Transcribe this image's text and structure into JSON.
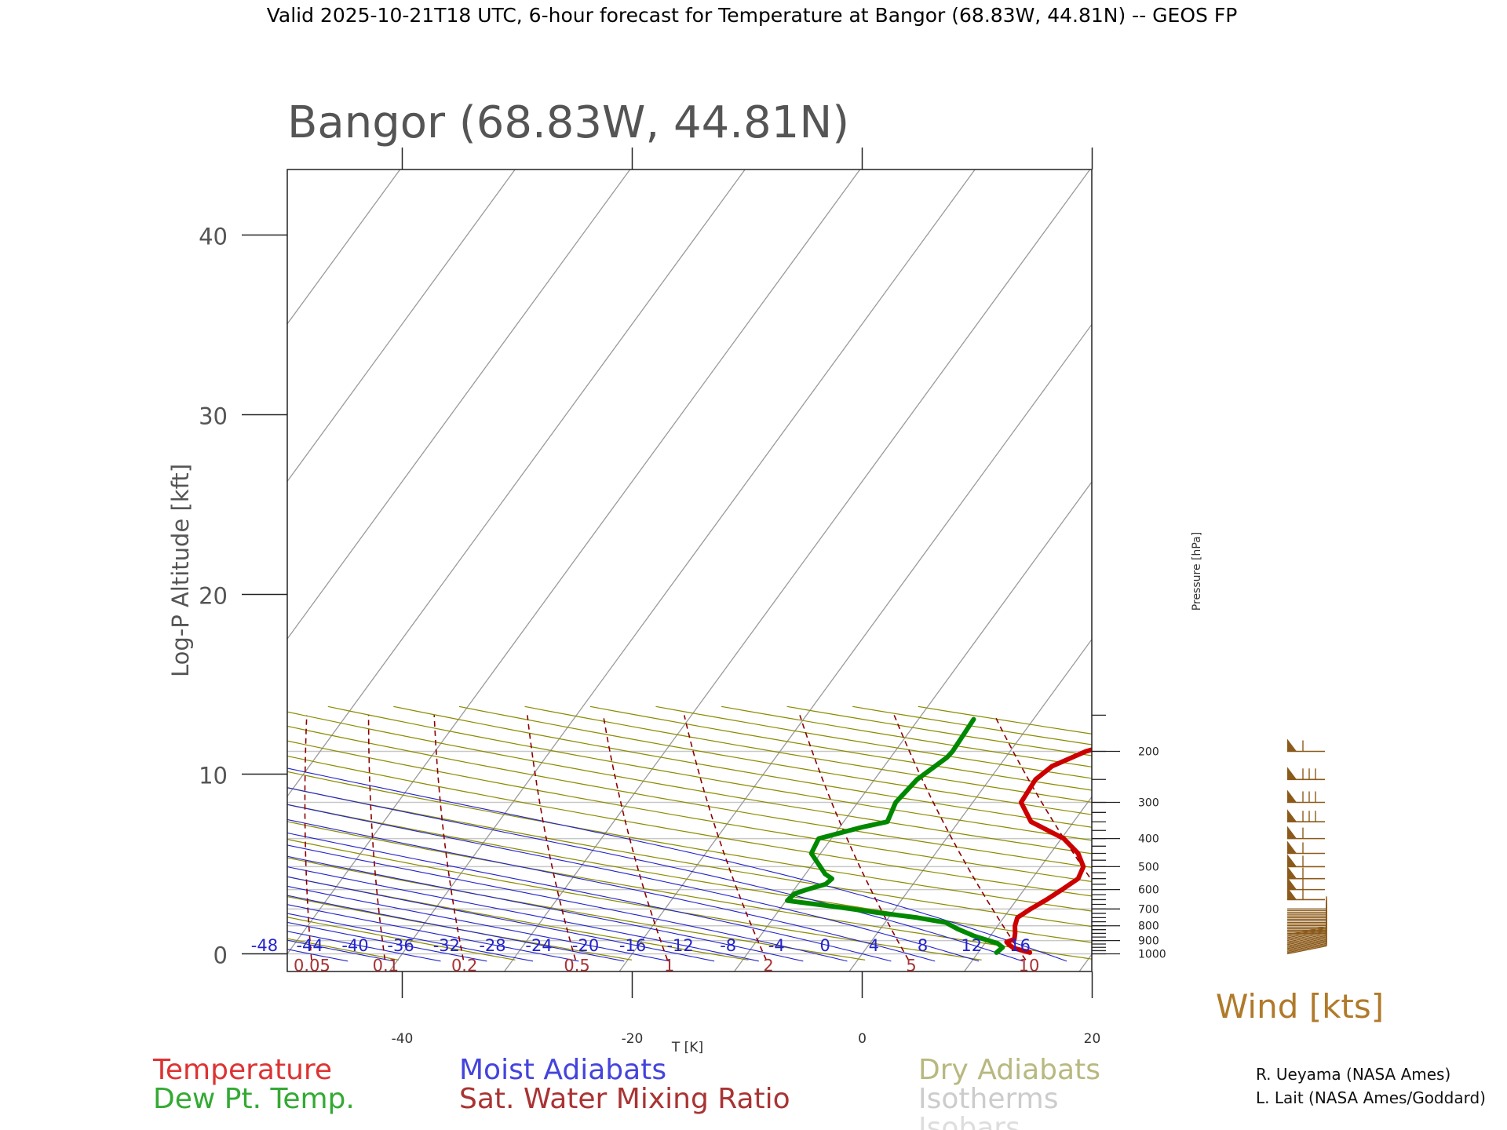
{
  "header": "Valid 2025-10-21T18 UTC, 6-hour forecast for Temperature at Bangor (68.83W, 44.81N) -- GEOS FP",
  "plot_title": "Bangor (68.83W, 44.81N)",
  "left_axis": {
    "label": "Log-P Altitude [kft]",
    "ticks": [
      "0",
      "10",
      "20",
      "30",
      "40"
    ]
  },
  "bottom_axis": {
    "label": "T [K]",
    "ticks": [
      "-40",
      "-20",
      "0",
      "20"
    ]
  },
  "right_axis": {
    "label": "Pressure [hPa]",
    "ticks": [
      "200",
      "300",
      "400",
      "500",
      "600",
      "700",
      "800",
      "900",
      "1000"
    ]
  },
  "moist_adiabat_labels": [
    "-48",
    "-44",
    "-40",
    "-36",
    "-32",
    "-28",
    "-24",
    "-20",
    "-16",
    "-12",
    "-8",
    "-4",
    "0",
    "4",
    "8",
    "12",
    "16"
  ],
  "mixing_ratio_labels": [
    "0.05",
    "0.1",
    "0.2",
    "0.5",
    "1",
    "2",
    "5",
    "10"
  ],
  "wind_label": "Wind [kts]",
  "legend": {
    "temperature": "Temperature",
    "dewpoint": "Dew Pt. Temp.",
    "moist": "Moist Adiabats",
    "mixing": "Sat. Water Mixing Ratio",
    "dry": "Dry Adiabats",
    "isotherms": "Isotherms",
    "isobars": "Isobars"
  },
  "credits": [
    "R. Ueyama (NASA Ames)",
    "L. Lait (NASA Ames/Goddard)"
  ],
  "colors": {
    "temperature": "#cc0000",
    "dewpoint": "#008800",
    "moist": "#2323cc",
    "mixing": "#8b0000",
    "dry": "#8b8b00",
    "isotherm": "#9a9a9a",
    "isobar": "#c8c8c8",
    "wind": "#8b5a1a"
  },
  "chart_data": {
    "type": "line",
    "diagram": "skew-T log-P",
    "x_unit": "degC",
    "y_unit": "hPa",
    "xlim": [
      -50,
      20
    ],
    "ylim_kft": [
      0,
      43
    ],
    "series": [
      {
        "name": "Temperature",
        "points": [
          [
            14.5,
            990
          ],
          [
            12.8,
            955
          ],
          [
            12.2,
            930
          ],
          [
            11.8,
            910
          ],
          [
            12.3,
            890
          ],
          [
            12.0,
            850
          ],
          [
            11.5,
            800
          ],
          [
            11.2,
            750
          ],
          [
            11.8,
            700
          ],
          [
            12.6,
            650
          ],
          [
            13.3,
            600
          ],
          [
            14.0,
            550
          ],
          [
            13.7,
            500
          ],
          [
            12.4,
            450
          ],
          [
            10.2,
            400
          ],
          [
            6.3,
            350
          ],
          [
            4.2,
            300
          ],
          [
            4.0,
            250
          ],
          [
            4.6,
            225
          ],
          [
            6.6,
            200
          ],
          [
            10.8,
            175
          ],
          [
            14.2,
            155
          ]
        ]
      },
      {
        "name": "Dew Pt. Temp.",
        "points": [
          [
            11.6,
            990
          ],
          [
            11.8,
            950
          ],
          [
            11.1,
            920
          ],
          [
            8.7,
            870
          ],
          [
            6.7,
            820
          ],
          [
            5.3,
            780
          ],
          [
            2.5,
            750
          ],
          [
            -1.4,
            720
          ],
          [
            -5.0,
            690
          ],
          [
            -9.9,
            655
          ],
          [
            -9.7,
            620
          ],
          [
            -8.9,
            600
          ],
          [
            -7.6,
            575
          ],
          [
            -7.4,
            550
          ],
          [
            -8.3,
            530
          ],
          [
            -10.8,
            450
          ],
          [
            -11.1,
            400
          ],
          [
            -8.0,
            365
          ],
          [
            -6.2,
            350
          ],
          [
            -6.7,
            300
          ],
          [
            -6.3,
            250
          ],
          [
            -5.1,
            210
          ],
          [
            -5.0,
            200
          ],
          [
            -5.2,
            155
          ]
        ]
      }
    ],
    "wind_barb_levels_hpa": [
      1000,
      990,
      980,
      970,
      960,
      950,
      940,
      930,
      920,
      910,
      900,
      890,
      880,
      870,
      860,
      850,
      840,
      830,
      820,
      810,
      800,
      790,
      780,
      770,
      760,
      750,
      740,
      730,
      720,
      710,
      700,
      650,
      600,
      550,
      500,
      450,
      400,
      350,
      300,
      250,
      200
    ]
  }
}
